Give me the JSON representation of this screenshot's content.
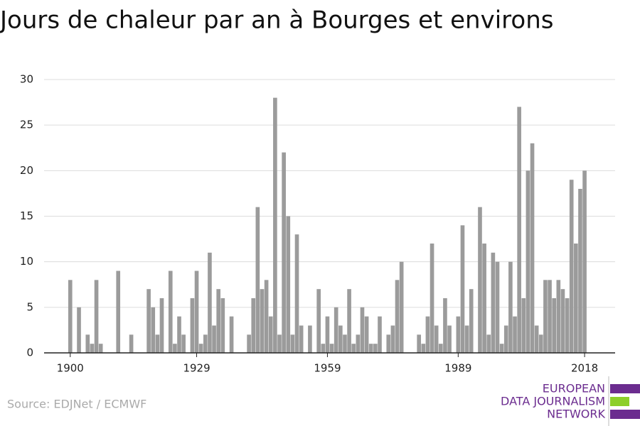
{
  "chart_data": {
    "type": "bar",
    "title": "Jours de chaleur par an à Bourges et environs",
    "source": "Source: EDJNet / ECMWF",
    "logo": [
      "EUROPEAN",
      "DATA JOURNALISM",
      "NETWORK"
    ],
    "color": "#9b9b9b",
    "grid": true,
    "x": [
      1900,
      1901,
      1902,
      1903,
      1904,
      1905,
      1906,
      1907,
      1908,
      1909,
      1910,
      1911,
      1912,
      1913,
      1914,
      1915,
      1916,
      1917,
      1918,
      1919,
      1920,
      1921,
      1922,
      1923,
      1924,
      1925,
      1926,
      1927,
      1928,
      1929,
      1930,
      1931,
      1932,
      1933,
      1934,
      1935,
      1936,
      1937,
      1938,
      1939,
      1940,
      1941,
      1942,
      1943,
      1944,
      1945,
      1946,
      1947,
      1948,
      1949,
      1950,
      1951,
      1952,
      1953,
      1954,
      1955,
      1956,
      1957,
      1958,
      1959,
      1960,
      1961,
      1962,
      1963,
      1964,
      1965,
      1966,
      1967,
      1968,
      1969,
      1970,
      1971,
      1972,
      1973,
      1974,
      1975,
      1976,
      1977,
      1978,
      1979,
      1980,
      1981,
      1982,
      1983,
      1984,
      1985,
      1986,
      1987,
      1988,
      1989,
      1990,
      1991,
      1992,
      1993,
      1994,
      1995,
      1996,
      1997,
      1998,
      1999,
      2000,
      2001,
      2002,
      2003,
      2004,
      2005,
      2006,
      2007,
      2008,
      2009,
      2010,
      2011,
      2012,
      2013,
      2014,
      2015,
      2016,
      2017,
      2018
    ],
    "values": [
      8,
      0,
      5,
      0,
      2,
      1,
      8,
      1,
      0,
      0,
      0,
      9,
      0,
      0,
      2,
      0,
      0,
      0,
      7,
      5,
      2,
      6,
      0,
      9,
      1,
      4,
      2,
      0,
      6,
      9,
      1,
      2,
      11,
      3,
      7,
      6,
      0,
      4,
      0,
      0,
      0,
      2,
      6,
      16,
      7,
      8,
      4,
      28,
      2,
      22,
      15,
      2,
      13,
      3,
      0,
      3,
      0,
      7,
      1,
      4,
      1,
      5,
      3,
      2,
      7,
      1,
      2,
      5,
      4,
      1,
      1,
      4,
      0,
      2,
      3,
      8,
      10,
      0,
      0,
      0,
      2,
      1,
      4,
      12,
      3,
      1,
      6,
      3,
      0,
      4,
      14,
      3,
      7,
      0,
      16,
      12,
      2,
      11,
      10,
      1,
      3,
      10,
      4,
      27,
      6,
      20,
      23,
      3,
      2,
      8,
      8,
      6,
      8,
      7,
      6,
      19,
      12,
      18,
      20
    ],
    "xlim": [
      1894,
      2025
    ],
    "xticks": [
      1900,
      1929,
      1959,
      1989,
      2018
    ],
    "ylim": [
      0,
      30
    ],
    "yticks": [
      0,
      5,
      10,
      15,
      20,
      25,
      30
    ]
  }
}
